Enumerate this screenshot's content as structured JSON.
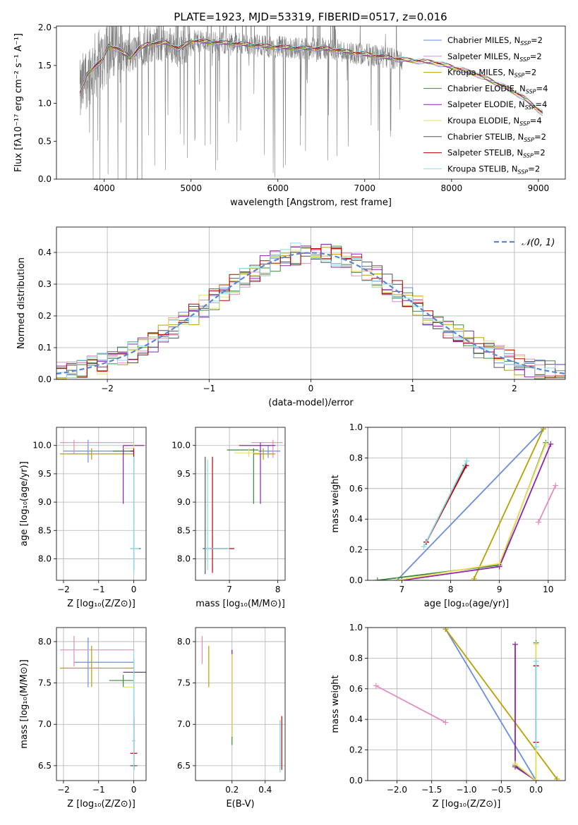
{
  "figure_title": "PLATE=1923, MJD=53319, FIBERID=0517, z=0.016",
  "colors": {
    "data": "#808080",
    "series": [
      "#6a8ee0",
      "#e58bbd",
      "#b8a000",
      "#3e8a3e",
      "#8e24aa",
      "#f0e060",
      "#555555",
      "#c00000",
      "#88ddee"
    ]
  },
  "chart_data": [
    {
      "id": "spectrum",
      "type": "line",
      "xlabel": "wavelength [Angstrom, rest frame]",
      "ylabel": "Flux [fλ10⁻¹⁷ erg cm⁻² s⁻¹ A⁻¹]",
      "xlim": [
        3450,
        9310
      ],
      "ylim": [
        0,
        2.02
      ],
      "xticks": [
        4000,
        5000,
        6000,
        7000,
        8000,
        9000
      ],
      "yticks": [
        0.0,
        0.5,
        1.0,
        1.5,
        2.0
      ],
      "grid": false,
      "legend_position": "top-right",
      "legend": [
        "Chabrier MILES, N_SSP=2",
        "Salpeter MILES, N_SSP=2",
        "Kroupa MILES, N_SSP=2",
        "Chabrier ELODIE, N_SSP=4",
        "Salpeter ELODIE, N_SSP=4",
        "Kroupa ELODIE, N_SSP=4",
        "Chabrier STELIB, N_SSP=2",
        "Salpeter STELIB, N_SSP=2",
        "Kroupa STELIB, N_SSP=2"
      ],
      "model_continuum": {
        "x": [
          3720,
          3800,
          3900,
          3970,
          4050,
          4150,
          4300,
          4400,
          4500,
          4700,
          4860,
          5000,
          5200,
          5500,
          5900,
          6200,
          6563,
          6800,
          7100,
          7400,
          7600,
          7800,
          8000,
          8300,
          8600,
          8800,
          9050
        ],
        "y": [
          1.12,
          1.38,
          1.5,
          1.55,
          1.76,
          1.72,
          1.6,
          1.72,
          1.78,
          1.8,
          1.72,
          1.82,
          1.81,
          1.79,
          1.75,
          1.73,
          1.72,
          1.68,
          1.63,
          1.58,
          1.56,
          1.54,
          1.48,
          1.38,
          1.22,
          1.1,
          0.87
        ]
      },
      "data_x_range": [
        3720,
        7440
      ]
    },
    {
      "id": "residuals",
      "type": "histogram",
      "xlabel": "(data-model)/error",
      "ylabel": "Normed distribution",
      "xlim": [
        -2.5,
        2.5
      ],
      "ylim": [
        0,
        0.48
      ],
      "xticks": [
        -2,
        -1,
        0,
        1,
        2
      ],
      "yticks": [
        0.0,
        0.1,
        0.2,
        0.3,
        0.4
      ],
      "grid": true,
      "legend_position": "top-right",
      "legend": [
        "𝒩(0, 1)"
      ],
      "bin_width": 0.1,
      "gaussian": {
        "mean": 0,
        "sigma": 1
      }
    },
    {
      "id": "age_vs_Z",
      "type": "errorbar",
      "xlabel": "Z [log₁₀(Z/Z⊙)]",
      "ylabel": "age  [log₁₀(age/yr)]",
      "xlim": [
        -2.2,
        0.35
      ],
      "ylim": [
        7.62,
        10.32
      ],
      "xticks": [
        -2,
        -1,
        0
      ],
      "yticks": [
        8.0,
        8.5,
        9.0,
        9.5,
        10.0
      ],
      "grid": true,
      "bars": [
        {
          "c": 0,
          "x": -1.3,
          "y": 9.9,
          "xe": [
            -2.0,
            0.0
          ],
          "ye": [
            9.7,
            10.1
          ]
        },
        {
          "c": 1,
          "x": -1.7,
          "y": 10.05,
          "xe": [
            -2.1,
            0.0
          ],
          "ye": [
            9.85,
            10.1
          ]
        },
        {
          "c": 2,
          "x": -1.2,
          "y": 9.85,
          "xe": [
            -2.1,
            0.0
          ],
          "ye": [
            9.75,
            9.95
          ]
        },
        {
          "c": 3,
          "x": -0.3,
          "y": 9.9,
          "xe": [
            -0.6,
            0.0
          ],
          "ye": [
            9.85,
            9.95
          ]
        },
        {
          "c": 4,
          "x": -0.3,
          "y": 10.0,
          "xe": [
            -0.3,
            0.3
          ],
          "ye": [
            8.97,
            10.0
          ]
        },
        {
          "c": 5,
          "x": 0.0,
          "y": 9.95,
          "xe": [
            -0.3,
            0.0
          ],
          "ye": [
            8.0,
            10.05
          ]
        },
        {
          "c": 6,
          "x": 0.0,
          "y": 8.18,
          "xe": [
            -0.1,
            0.2
          ],
          "ye": [
            7.8,
            9.75
          ]
        },
        {
          "c": 7,
          "x": 0.0,
          "y": 9.9,
          "xe": [
            -0.1,
            0.0
          ],
          "ye": [
            9.7,
            9.95
          ]
        },
        {
          "c": 8,
          "x": 0.0,
          "y": 8.18,
          "xe": [
            -0.1,
            0.15
          ],
          "ye": [
            7.72,
            9.8
          ]
        }
      ]
    },
    {
      "id": "age_vs_mass",
      "type": "errorbar",
      "xlabel": "mass [log₁₀(M/M⊙)]",
      "ylabel": "",
      "xlim": [
        6.3,
        8.15
      ],
      "ylim": [
        7.62,
        10.32
      ],
      "xticks": [
        7,
        8
      ],
      "yticks": [
        8.0,
        8.5,
        9.0,
        9.5,
        10.0
      ],
      "grid": true,
      "bars": [
        {
          "c": 0,
          "x": 7.8,
          "y": 9.9,
          "xe": [
            7.6,
            8.05
          ],
          "ye": [
            9.78,
            10.0
          ]
        },
        {
          "c": 1,
          "x": 7.9,
          "y": 10.05,
          "xe": [
            7.45,
            8.1
          ],
          "ye": [
            9.78,
            10.1
          ]
        },
        {
          "c": 2,
          "x": 7.7,
          "y": 9.85,
          "xe": [
            7.5,
            7.95
          ],
          "ye": [
            9.75,
            9.95
          ]
        },
        {
          "c": 3,
          "x": 7.5,
          "y": 9.92,
          "xe": [
            6.95,
            7.6
          ],
          "ye": [
            8.97,
            9.95
          ]
        },
        {
          "c": 4,
          "x": 7.64,
          "y": 10.0,
          "xe": [
            7.2,
            7.95
          ],
          "ye": [
            8.97,
            10.05
          ]
        },
        {
          "c": 5,
          "x": 7.4,
          "y": 9.87,
          "xe": [
            7.1,
            7.65
          ],
          "ye": [
            9.8,
            9.95
          ]
        },
        {
          "c": 6,
          "x": 6.5,
          "y": 8.18,
          "xe": [
            6.45,
            6.95
          ],
          "ye": [
            7.73,
            9.8
          ]
        },
        {
          "c": 7,
          "x": 6.65,
          "y": 8.18,
          "xe": [
            6.6,
            7.1
          ],
          "ye": [
            7.75,
            9.8
          ]
        },
        {
          "c": 8,
          "x": 6.55,
          "y": 8.18,
          "xe": [
            6.5,
            7.0
          ],
          "ye": [
            7.8,
            9.75
          ]
        }
      ]
    },
    {
      "id": "weight_vs_age",
      "type": "line",
      "xlabel": "age  [log₁₀(age/yr)]",
      "ylabel": "mass weight",
      "xlim": [
        6.3,
        10.35
      ],
      "ylim": [
        0,
        1
      ],
      "xticks": [
        7,
        8,
        9,
        10
      ],
      "yticks": [
        0.0,
        0.2,
        0.4,
        0.6,
        0.8,
        1.0
      ],
      "grid": true,
      "series": [
        {
          "c": 0,
          "x": [
            6.9,
            9.9
          ],
          "y": [
            0.0,
            0.99
          ]
        },
        {
          "c": 1,
          "x": [
            9.8,
            10.15
          ],
          "y": [
            0.38,
            0.62
          ]
        },
        {
          "c": 2,
          "x": [
            8.48,
            9.9
          ],
          "y": [
            0.01,
            0.99
          ]
        },
        {
          "c": 3,
          "x": [
            6.5,
            9.0,
            9.95
          ],
          "y": [
            0.0,
            0.1,
            0.9
          ]
        },
        {
          "c": 4,
          "x": [
            7.0,
            9.0,
            10.05
          ],
          "y": [
            0.0,
            0.09,
            0.89
          ]
        },
        {
          "c": 5,
          "x": [
            6.9,
            9.0,
            9.95
          ],
          "y": [
            0.0,
            0.11,
            0.89
          ]
        },
        {
          "c": 6,
          "x": [
            7.5,
            8.3
          ],
          "y": [
            0.25,
            0.75
          ]
        },
        {
          "c": 7,
          "x": [
            7.5,
            8.32
          ],
          "y": [
            0.25,
            0.75
          ]
        },
        {
          "c": 8,
          "x": [
            7.45,
            8.33
          ],
          "y": [
            0.22,
            0.78
          ]
        }
      ]
    },
    {
      "id": "mass_vs_Z",
      "type": "errorbar",
      "xlabel": "Z [log₁₀(Z/Z⊙)]",
      "ylabel": "mass [log₁₀(M/M⊙)]",
      "xlim": [
        -2.2,
        0.35
      ],
      "ylim": [
        6.32,
        8.17
      ],
      "xticks": [
        -2,
        -1,
        0
      ],
      "yticks": [
        6.5,
        7.0,
        7.5,
        8.0
      ],
      "grid": true,
      "bars": [
        {
          "c": 0,
          "x": -1.3,
          "y": 7.75,
          "xe": [
            -1.7,
            0.0
          ],
          "ye": [
            7.45,
            8.05
          ]
        },
        {
          "c": 1,
          "x": -1.7,
          "y": 7.9,
          "xe": [
            -2.1,
            0.0
          ],
          "ye": [
            7.7,
            8.07
          ]
        },
        {
          "c": 2,
          "x": -1.2,
          "y": 7.68,
          "xe": [
            -2.1,
            0.0
          ],
          "ye": [
            7.45,
            7.95
          ]
        },
        {
          "c": 3,
          "x": -0.3,
          "y": 7.53,
          "xe": [
            -0.7,
            0.0
          ],
          "ye": [
            7.45,
            7.6
          ]
        },
        {
          "c": 4,
          "x": 0.0,
          "y": 7.63,
          "xe": [
            -0.3,
            0.35
          ],
          "ye": [
            6.95,
            7.8
          ]
        },
        {
          "c": 5,
          "x": 0.0,
          "y": 7.45,
          "xe": [
            -0.3,
            0.0
          ],
          "ye": [
            7.35,
            7.55
          ]
        },
        {
          "c": 6,
          "x": 0.0,
          "y": 6.5,
          "xe": [
            -0.1,
            0.1
          ],
          "ye": [
            6.45,
            7.05
          ]
        },
        {
          "c": 7,
          "x": 0.0,
          "y": 6.65,
          "xe": [
            -0.1,
            0.1
          ],
          "ye": [
            6.45,
            7.1
          ]
        },
        {
          "c": 8,
          "x": 0.0,
          "y": 6.8,
          "xe": [
            -0.05,
            0.05
          ],
          "ye": [
            6.42,
            7.9
          ]
        }
      ]
    },
    {
      "id": "mass_vs_EBV",
      "type": "errorbar",
      "xlabel": "E(B-V)",
      "ylabel": "",
      "xlim": [
        -0.02,
        0.52
      ],
      "ylim": [
        6.32,
        8.17
      ],
      "xticks": [
        0.2,
        0.4
      ],
      "yticks": [
        6.5,
        7.0,
        7.5,
        8.0
      ],
      "grid": true,
      "bars": [
        {
          "c": 1,
          "x": 0.02,
          "y": 7.9,
          "xe": [
            0.02,
            0.02
          ],
          "ye": [
            7.73,
            8.07
          ]
        },
        {
          "c": 2,
          "x": 0.06,
          "y": 7.68,
          "xe": [
            0.06,
            0.06
          ],
          "ye": [
            7.45,
            7.95
          ]
        },
        {
          "c": 3,
          "x": 0.2,
          "y": 7.5,
          "xe": [
            0.2,
            0.2
          ],
          "ye": [
            6.75,
            7.9
          ]
        },
        {
          "c": 4,
          "x": 0.2,
          "y": 7.6,
          "xe": [
            0.2,
            0.2
          ],
          "ye": [
            6.85,
            7.9
          ]
        },
        {
          "c": 5,
          "x": 0.2,
          "y": 7.45,
          "xe": [
            0.2,
            0.2
          ],
          "ye": [
            6.85,
            7.85
          ]
        },
        {
          "c": 6,
          "x": 0.49,
          "y": 6.6,
          "xe": [
            0.49,
            0.49
          ],
          "ye": [
            6.45,
            7.05
          ]
        },
        {
          "c": 7,
          "x": 0.5,
          "y": 6.7,
          "xe": [
            0.5,
            0.5
          ],
          "ye": [
            6.45,
            7.1
          ]
        },
        {
          "c": 8,
          "x": 0.49,
          "y": 6.8,
          "xe": [
            0.49,
            0.49
          ],
          "ye": [
            6.42,
            7.05
          ]
        }
      ]
    },
    {
      "id": "weight_vs_Z",
      "type": "line",
      "xlabel": "Z [log₁₀(Z/Z⊙)]",
      "ylabel": "mass weight",
      "xlim": [
        -2.42,
        0.42
      ],
      "ylim": [
        0,
        1
      ],
      "xticks": [
        -2.0,
        -1.5,
        -1.0,
        -0.5,
        0.0
      ],
      "yticks": [
        0.0,
        0.2,
        0.4,
        0.6,
        0.8,
        1.0
      ],
      "grid": true,
      "series": [
        {
          "c": 0,
          "x": [
            -1.3,
            0.0
          ],
          "y": [
            0.99,
            0.0
          ]
        },
        {
          "c": 1,
          "x": [
            -2.3,
            -1.3
          ],
          "y": [
            0.62,
            0.38
          ]
        },
        {
          "c": 2,
          "x": [
            -1.3,
            0.3
          ],
          "y": [
            0.99,
            0.01
          ]
        },
        {
          "c": 3,
          "x": [
            -0.3,
            0.0,
            0.0
          ],
          "y": [
            0.1,
            0.0,
            0.9
          ]
        },
        {
          "c": 4,
          "x": [
            -0.3,
            -0.3,
            0.0
          ],
          "y": [
            0.89,
            0.09,
            0.0
          ]
        },
        {
          "c": 5,
          "x": [
            -0.3,
            0.0,
            0.0
          ],
          "y": [
            0.11,
            0.0,
            0.89
          ]
        },
        {
          "c": 6,
          "x": [
            0.0,
            0.0
          ],
          "y": [
            0.25,
            0.75
          ]
        },
        {
          "c": 7,
          "x": [
            0.0,
            0.0
          ],
          "y": [
            0.25,
            0.75
          ]
        },
        {
          "c": 8,
          "x": [
            0.0,
            0.0
          ],
          "y": [
            0.22,
            0.78
          ]
        }
      ]
    }
  ]
}
